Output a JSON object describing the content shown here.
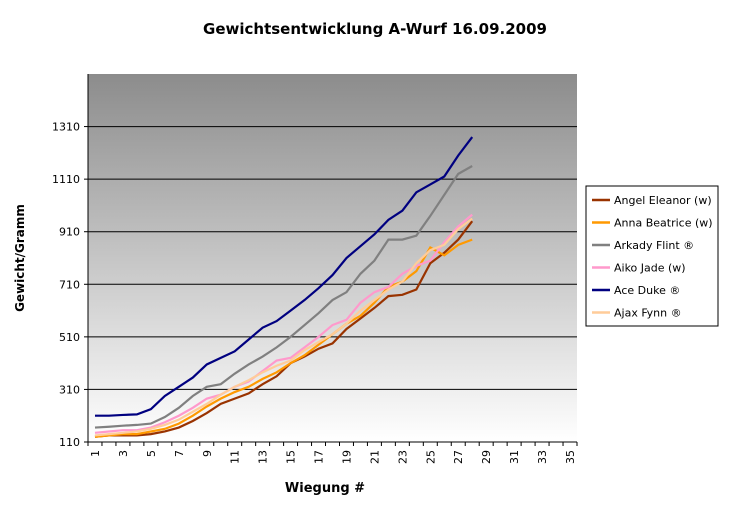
{
  "chart_data": {
    "type": "line",
    "title": "Gewichtsentwicklung A-Wurf 16.09.2009",
    "x_label": "Wiegung #",
    "y_label": "Gewicht/Gramm",
    "categories": [
      "1",
      null,
      "3",
      null,
      "5",
      null,
      "7",
      null,
      "9",
      null,
      "11",
      null,
      "13",
      null,
      "15",
      null,
      "17",
      null,
      "19",
      null,
      "21",
      null,
      "23",
      null,
      "25",
      null,
      "27",
      null,
      "29",
      null,
      "31",
      null,
      "33",
      null,
      "35"
    ],
    "ylim": [
      110,
      1510
    ],
    "yticks": [
      110,
      310,
      510,
      710,
      910,
      1110,
      1310
    ],
    "grid": true,
    "legend": "right",
    "series": [
      {
        "name": "Angel Eleanor (w)",
        "color": "#993300",
        "values": [
          130,
          135,
          135,
          135,
          140,
          150,
          165,
          190,
          220,
          255,
          275,
          295,
          330,
          360,
          410,
          435,
          465,
          485,
          540,
          580,
          620,
          665,
          670,
          690,
          790,
          830,
          880,
          950,
          null,
          null,
          null,
          null,
          null,
          null,
          null
        ]
      },
      {
        "name": "Anna Beatrice (w)",
        "color": "#ff9900",
        "values": [
          130,
          135,
          140,
          140,
          150,
          160,
          180,
          210,
          245,
          275,
          300,
          320,
          350,
          375,
          410,
          440,
          480,
          520,
          560,
          590,
          640,
          700,
          720,
          760,
          850,
          820,
          860,
          880,
          null,
          null,
          null,
          null,
          null,
          null,
          null
        ]
      },
      {
        "name": "Arkady Flint ®",
        "color": "#808080",
        "values": [
          165,
          168,
          172,
          175,
          180,
          205,
          240,
          285,
          320,
          330,
          370,
          405,
          435,
          470,
          510,
          555,
          600,
          650,
          680,
          750,
          800,
          880,
          880,
          895,
          970,
          1050,
          1130,
          1160,
          null,
          null,
          null,
          null,
          null,
          null,
          null
        ]
      },
      {
        "name": "Aiko Jade (w)",
        "color": "#ff99cc",
        "values": [
          145,
          150,
          155,
          155,
          165,
          185,
          210,
          240,
          275,
          290,
          320,
          340,
          380,
          420,
          430,
          470,
          510,
          555,
          575,
          640,
          680,
          700,
          750,
          780,
          800,
          870,
          930,
          975,
          null,
          null,
          null,
          null,
          null,
          null,
          null
        ]
      },
      {
        "name": "Ace Duke ®",
        "color": "#000080",
        "values": [
          210,
          210,
          213,
          215,
          235,
          285,
          320,
          355,
          405,
          430,
          455,
          500,
          545,
          570,
          610,
          650,
          695,
          745,
          810,
          855,
          900,
          955,
          990,
          1060,
          1090,
          1120,
          1200,
          1270,
          null,
          null,
          null,
          null,
          null,
          null,
          null
        ]
      },
      {
        "name": "Ajax Fynn ®",
        "color": "#ffcc99",
        "values": [
          135,
          140,
          145,
          150,
          160,
          175,
          195,
          225,
          255,
          290,
          320,
          345,
          375,
          400,
          420,
          460,
          490,
          520,
          560,
          610,
          650,
          690,
          720,
          790,
          840,
          860,
          920,
          960,
          null,
          null,
          null,
          null,
          null,
          null,
          null
        ]
      }
    ]
  }
}
